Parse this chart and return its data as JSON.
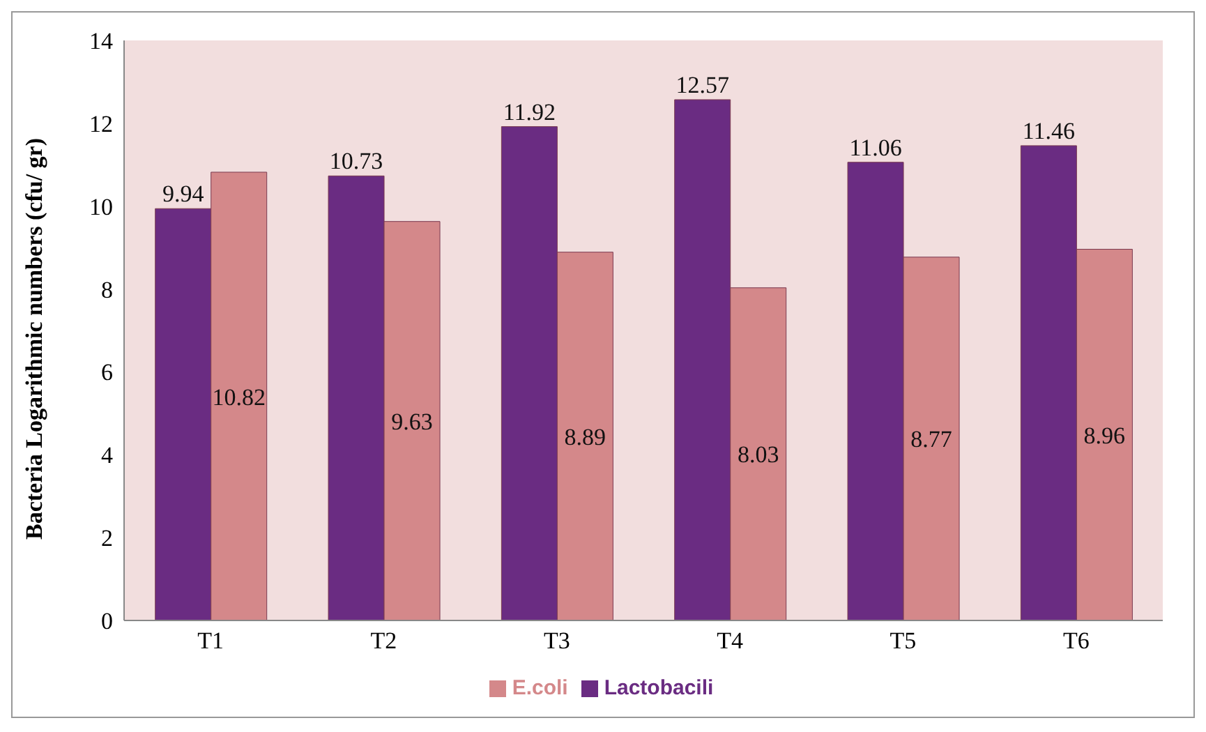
{
  "chart_data": {
    "type": "bar",
    "ylabel": "Bacteria Logarithmic numbers  (cfu/ gr)",
    "categories": [
      "T1",
      "T2",
      "T3",
      "T4",
      "T5",
      "T6"
    ],
    "series": [
      {
        "name": "Lactobacili",
        "color": "#6a2c82",
        "values": [
          9.94,
          10.73,
          11.92,
          12.57,
          11.06,
          11.46
        ]
      },
      {
        "name": "E.coli",
        "color": "#d4888a",
        "values": [
          10.82,
          9.63,
          8.89,
          8.03,
          8.77,
          8.96
        ]
      }
    ],
    "ylim": [
      0,
      14
    ],
    "yticks": [
      0,
      2,
      4,
      6,
      8,
      10,
      12,
      14
    ],
    "grid": false,
    "legend": "bottom",
    "data_labels": true
  }
}
